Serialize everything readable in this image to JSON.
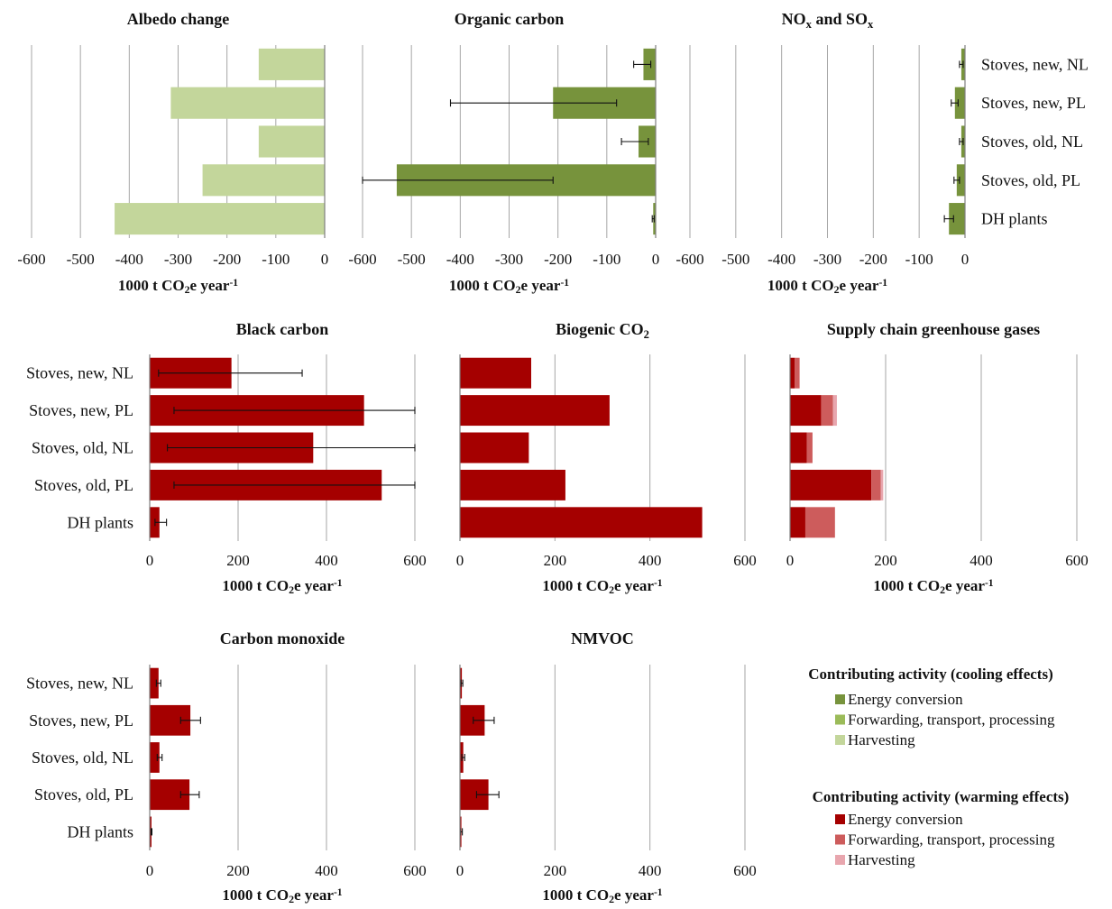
{
  "figure": {
    "categories": [
      "Stoves, new, NL",
      "Stoves, new, PL",
      "Stoves, old, NL",
      "Stoves, old, PL",
      "DH plants"
    ]
  },
  "colors": {
    "cool_energy": "#77933c",
    "cool_forwarding": "#9bbb59",
    "cool_harvesting": "#c3d69b",
    "warm_energy": "#a50000",
    "warm_forwarding": "#cd5c5c",
    "warm_harvesting": "#e8a6ae",
    "gridline": "#a6a6a6"
  },
  "legends": [
    {
      "title": "Contributing activity (cooling effects)",
      "items": [
        {
          "label": "Energy conversion",
          "color": "#77933c"
        },
        {
          "label": "Forwarding, transport, processing",
          "color": "#9bbb59"
        },
        {
          "label": "Harvesting",
          "color": "#c3d69b"
        }
      ]
    },
    {
      "title": "Contributing activity (warming effects)",
      "items": [
        {
          "label": "Energy conversion",
          "color": "#a50000"
        },
        {
          "label": "Forwarding, transport, processing",
          "color": "#cd5c5c"
        },
        {
          "label": "Harvesting",
          "color": "#e8a6ae"
        }
      ]
    }
  ],
  "chart_data": [
    {
      "type": "bar",
      "orientation": "horizontal",
      "stacked": true,
      "title": "Albedo change",
      "xlabel": "1000 t CO₂e year⁻¹",
      "xlim": [
        -600,
        0
      ],
      "xticks": [
        -600,
        -500,
        -400,
        -300,
        -200,
        -100,
        0
      ],
      "categories": [
        "Stoves, new, NL",
        "Stoves, new, PL",
        "Stoves, old, NL",
        "Stoves, old, PL",
        "DH plants"
      ],
      "series": [
        {
          "name": "Harvesting",
          "color": "#c3d69b",
          "values": [
            -135,
            -315,
            -135,
            -250,
            -430
          ]
        }
      ]
    },
    {
      "type": "bar",
      "orientation": "horizontal",
      "stacked": true,
      "title": "Organic carbon",
      "xlabel": "1000 t CO₂e year⁻¹",
      "xlim": [
        -600,
        0
      ],
      "xticks": [
        -600,
        -500,
        -400,
        -300,
        -200,
        -100,
        0
      ],
      "categories": [
        "Stoves, new, NL",
        "Stoves, new, PL",
        "Stoves, old, NL",
        "Stoves, old, PL",
        "DH plants"
      ],
      "series": [
        {
          "name": "Energy conversion",
          "color": "#77933c",
          "values": [
            -25,
            -210,
            -35,
            -530,
            -5
          ]
        }
      ],
      "error_bars": [
        [
          -45,
          -10
        ],
        [
          -420,
          -80
        ],
        [
          -70,
          -15
        ],
        [
          -600,
          -210
        ],
        [
          -7,
          -3
        ]
      ]
    },
    {
      "type": "bar",
      "orientation": "horizontal",
      "stacked": true,
      "title": "NOx and SOx",
      "xlabel": "1000 t CO₂e year⁻¹",
      "xlim": [
        -600,
        0
      ],
      "xticks": [
        -600,
        -500,
        -400,
        -300,
        -200,
        -100,
        0
      ],
      "category_labels_side": "right",
      "categories": [
        "Stoves, new, NL",
        "Stoves, new, PL",
        "Stoves, old, NL",
        "Stoves, old, PL",
        "DH plants"
      ],
      "series": [
        {
          "name": "Energy conversion",
          "color": "#77933c",
          "values": [
            -8,
            -22,
            -8,
            -18,
            -35
          ]
        }
      ],
      "error_bars": [
        [
          -12,
          -4
        ],
        [
          -30,
          -15
        ],
        [
          -12,
          -4
        ],
        [
          -24,
          -12
        ],
        [
          -45,
          -25
        ]
      ]
    },
    {
      "type": "bar",
      "orientation": "horizontal",
      "stacked": true,
      "title": "Black carbon",
      "xlabel": "1000 t CO₂e year⁻¹",
      "xlim": [
        0,
        600
      ],
      "xticks": [
        0,
        200,
        400,
        600
      ],
      "category_labels_side": "left",
      "categories": [
        "Stoves, new, NL",
        "Stoves, new, PL",
        "Stoves, old, NL",
        "Stoves, old, PL",
        "DH plants"
      ],
      "series": [
        {
          "name": "Energy conversion",
          "color": "#a50000",
          "values": [
            185,
            485,
            370,
            525,
            22
          ]
        }
      ],
      "error_bars": [
        [
          20,
          345
        ],
        [
          55,
          600
        ],
        [
          40,
          600
        ],
        [
          55,
          600
        ],
        [
          12,
          38
        ]
      ]
    },
    {
      "type": "bar",
      "orientation": "horizontal",
      "stacked": true,
      "title": "Biogenic CO₂",
      "xlabel": "1000 t CO₂e year⁻¹",
      "xlim": [
        0,
        600
      ],
      "xticks": [
        0,
        200,
        400,
        600
      ],
      "categories": [
        "Stoves, new, NL",
        "Stoves, new, PL",
        "Stoves, old, NL",
        "Stoves, old, PL",
        "DH plants"
      ],
      "series": [
        {
          "name": "Energy conversion",
          "color": "#a50000",
          "values": [
            150,
            315,
            145,
            222,
            510
          ]
        }
      ]
    },
    {
      "type": "bar",
      "orientation": "horizontal",
      "stacked": true,
      "title": "Supply chain greenhouse gases",
      "xlabel": "1000 t CO₂e year⁻¹",
      "xlim": [
        0,
        600
      ],
      "xticks": [
        0,
        200,
        400,
        600
      ],
      "categories": [
        "Stoves, new, NL",
        "Stoves, new, PL",
        "Stoves, old, NL",
        "Stoves, old, PL",
        "DH plants"
      ],
      "series": [
        {
          "name": "Energy conversion",
          "color": "#a50000",
          "values": [
            10,
            65,
            35,
            170,
            32
          ]
        },
        {
          "name": "Forwarding, transport, processing",
          "color": "#cd5c5c",
          "values": [
            10,
            25,
            12,
            20,
            62
          ]
        },
        {
          "name": "Harvesting",
          "color": "#e8a6ae",
          "values": [
            0,
            8,
            0,
            5,
            0
          ]
        }
      ]
    },
    {
      "type": "bar",
      "orientation": "horizontal",
      "stacked": true,
      "title": "Carbon monoxide",
      "xlabel": "1000 t CO₂e year⁻¹",
      "xlim": [
        0,
        600
      ],
      "xticks": [
        0,
        200,
        400,
        600
      ],
      "category_labels_side": "left",
      "categories": [
        "Stoves, new, NL",
        "Stoves, new, PL",
        "Stoves, old, NL",
        "Stoves, old, PL",
        "DH plants"
      ],
      "series": [
        {
          "name": "Energy conversion",
          "color": "#a50000",
          "values": [
            20,
            92,
            22,
            90,
            4
          ]
        }
      ],
      "error_bars": [
        [
          15,
          25
        ],
        [
          70,
          115
        ],
        [
          17,
          28
        ],
        [
          70,
          112
        ],
        [
          3,
          5
        ]
      ]
    },
    {
      "type": "bar",
      "orientation": "horizontal",
      "stacked": true,
      "title": "NMVOC",
      "xlabel": "1000 t CO₂e year⁻¹",
      "xlim": [
        0,
        600
      ],
      "xticks": [
        0,
        200,
        400,
        600
      ],
      "categories": [
        "Stoves, new, NL",
        "Stoves, new, PL",
        "Stoves, old, NL",
        "Stoves, old, PL",
        "DH plants"
      ],
      "series": [
        {
          "name": "Energy conversion",
          "color": "#a50000",
          "values": [
            4,
            52,
            7,
            60,
            3
          ]
        }
      ],
      "error_bars": [
        [
          2,
          6
        ],
        [
          28,
          72
        ],
        [
          4,
          10
        ],
        [
          35,
          82
        ],
        [
          1,
          5
        ]
      ]
    }
  ]
}
